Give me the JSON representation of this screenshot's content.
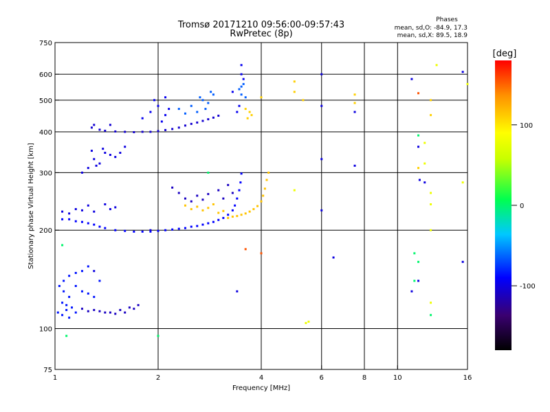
{
  "chart_data": {
    "type": "scatter",
    "title": "Tromsø 20171210 09:56:00-09:57:43",
    "subtitle": "RwPretec (8p)",
    "xlabel": "Frequency [MHz]",
    "ylabel": "Stationary phase Virtual Height [km]",
    "x_scale": "log",
    "y_scale": "log",
    "xlim": [
      1,
      16
    ],
    "ylim": [
      75,
      750
    ],
    "xticks": [
      1,
      2,
      4,
      6,
      8,
      10,
      16
    ],
    "yticks": [
      75,
      100,
      200,
      300,
      400,
      500,
      600,
      750
    ],
    "xgrid": [
      2,
      4,
      6,
      8,
      10
    ],
    "ygrid": [
      100,
      200,
      300,
      400,
      500,
      600
    ],
    "grid": true,
    "legend_block": {
      "title": "Phases",
      "line1": "mean, sd,O: -84.9, 17.3",
      "line2": "mean, sd,X:  89.5, 18.9"
    },
    "colorbar": {
      "label": "[deg]",
      "range": [
        -180,
        180
      ],
      "ticks": [
        100,
        0,
        -100
      ],
      "placement": "right"
    },
    "traces": [
      {
        "name": "",
        "phase": -90,
        "points": [
          [
            1.05,
            216
          ],
          [
            1.1,
            216
          ],
          [
            1.15,
            213
          ],
          [
            1.2,
            212
          ],
          [
            1.25,
            210
          ],
          [
            1.3,
            208
          ],
          [
            1.35,
            205
          ],
          [
            1.4,
            203
          ],
          [
            1.5,
            200
          ],
          [
            1.6,
            199
          ],
          [
            1.7,
            198
          ],
          [
            1.8,
            198
          ],
          [
            1.9,
            198
          ],
          [
            2.0,
            199
          ],
          [
            2.1,
            200
          ],
          [
            2.2,
            201
          ],
          [
            2.3,
            202
          ],
          [
            2.4,
            203
          ],
          [
            2.5,
            205
          ],
          [
            2.6,
            206
          ],
          [
            2.7,
            208
          ],
          [
            2.8,
            210
          ],
          [
            2.9,
            212
          ],
          [
            3.0,
            215
          ],
          [
            3.1,
            218
          ],
          [
            3.2,
            223
          ],
          [
            3.3,
            230
          ],
          [
            3.35,
            238
          ],
          [
            3.4,
            250
          ],
          [
            3.45,
            265
          ],
          [
            3.48,
            280
          ],
          [
            3.5,
            298
          ]
        ]
      },
      {
        "name": "",
        "phase": 115,
        "points": [
          [
            3.2,
            218
          ],
          [
            3.3,
            220
          ],
          [
            3.4,
            221
          ],
          [
            3.5,
            223
          ],
          [
            3.6,
            225
          ],
          [
            3.7,
            228
          ],
          [
            3.8,
            232
          ],
          [
            3.9,
            237
          ],
          [
            4.0,
            245
          ],
          [
            4.05,
            255
          ],
          [
            4.1,
            268
          ],
          [
            4.15,
            285
          ],
          [
            4.2,
            300
          ],
          [
            2.4,
            238
          ],
          [
            2.5,
            232
          ],
          [
            2.6,
            236
          ],
          [
            2.7,
            230
          ],
          [
            2.8,
            234
          ],
          [
            2.9,
            240
          ],
          [
            3.0,
            226
          ],
          [
            3.1,
            229
          ]
        ]
      },
      {
        "name": "",
        "phase": -105,
        "points": [
          [
            1.35,
            406
          ],
          [
            1.4,
            403
          ],
          [
            1.5,
            401
          ],
          [
            1.6,
            400
          ],
          [
            1.7,
            399
          ],
          [
            1.8,
            400
          ],
          [
            1.9,
            400
          ],
          [
            2.0,
            402
          ],
          [
            2.1,
            405
          ],
          [
            2.2,
            408
          ],
          [
            2.3,
            412
          ],
          [
            2.4,
            418
          ],
          [
            2.5,
            423
          ],
          [
            2.6,
            427
          ],
          [
            2.7,
            432
          ],
          [
            2.8,
            437
          ],
          [
            2.9,
            442
          ],
          [
            3.0,
            448
          ],
          [
            1.3,
            420
          ],
          [
            1.28,
            412
          ],
          [
            1.45,
            420
          ]
        ]
      },
      {
        "name": "",
        "phase": -65,
        "points": [
          [
            2.3,
            470
          ],
          [
            2.4,
            455
          ],
          [
            2.5,
            480
          ],
          [
            2.6,
            460
          ],
          [
            2.7,
            500
          ],
          [
            2.8,
            490
          ],
          [
            2.9,
            520
          ],
          [
            2.65,
            510
          ],
          [
            2.75,
            470
          ],
          [
            2.85,
            530
          ],
          [
            3.5,
            520
          ],
          [
            3.5,
            550
          ],
          [
            3.55,
            560
          ],
          [
            3.45,
            540
          ],
          [
            3.6,
            510
          ]
        ]
      },
      {
        "name": "",
        "phase": -95,
        "points": [
          [
            1.8,
            440
          ],
          [
            1.9,
            460
          ],
          [
            2.0,
            480
          ],
          [
            2.05,
            430
          ],
          [
            2.1,
            450
          ],
          [
            2.15,
            470
          ],
          [
            1.95,
            500
          ],
          [
            2.1,
            510
          ],
          [
            3.4,
            460
          ],
          [
            3.45,
            480
          ],
          [
            3.5,
            600
          ],
          [
            3.55,
            580
          ],
          [
            3.5,
            640
          ],
          [
            3.3,
            530
          ]
        ]
      },
      {
        "name": "",
        "phase": -100,
        "points": [
          [
            1.2,
            300
          ],
          [
            1.25,
            310
          ],
          [
            1.3,
            330
          ],
          [
            1.35,
            320
          ],
          [
            1.4,
            345
          ],
          [
            1.45,
            340
          ],
          [
            1.28,
            350
          ],
          [
            1.32,
            315
          ],
          [
            1.38,
            355
          ],
          [
            1.5,
            335
          ],
          [
            1.55,
            345
          ],
          [
            1.6,
            360
          ]
        ]
      },
      {
        "name": "",
        "phase": -85,
        "points": [
          [
            1.02,
            112
          ],
          [
            1.05,
            110
          ],
          [
            1.08,
            114
          ],
          [
            1.1,
            108
          ],
          [
            1.12,
            116
          ],
          [
            1.15,
            112
          ],
          [
            1.05,
            120
          ],
          [
            1.08,
            118
          ],
          [
            1.1,
            125
          ],
          [
            1.03,
            135
          ],
          [
            1.06,
            140
          ],
          [
            1.1,
            145
          ],
          [
            1.15,
            135
          ],
          [
            1.2,
            130
          ],
          [
            1.25,
            128
          ],
          [
            1.3,
            125
          ],
          [
            1.35,
            140
          ],
          [
            1.2,
            150
          ],
          [
            1.25,
            155
          ],
          [
            1.15,
            148
          ],
          [
            1.06,
            130
          ]
        ]
      },
      {
        "name": "",
        "phase": -110,
        "points": [
          [
            1.2,
            115
          ],
          [
            1.25,
            113
          ],
          [
            1.3,
            114
          ],
          [
            1.35,
            113
          ],
          [
            1.4,
            112
          ],
          [
            1.45,
            112
          ],
          [
            1.5,
            111
          ],
          [
            1.55,
            114
          ],
          [
            1.6,
            112
          ],
          [
            1.65,
            116
          ],
          [
            1.7,
            115
          ],
          [
            1.75,
            118
          ]
        ]
      },
      {
        "name": "",
        "phase": -100,
        "points": [
          [
            1.05,
            228
          ],
          [
            1.1,
            225
          ],
          [
            1.15,
            232
          ],
          [
            1.2,
            230
          ],
          [
            1.25,
            238
          ],
          [
            1.3,
            228
          ],
          [
            1.4,
            240
          ],
          [
            1.45,
            232
          ],
          [
            1.5,
            235
          ]
        ]
      },
      {
        "name": "",
        "phase": -110,
        "points": [
          [
            2.2,
            270
          ],
          [
            2.3,
            260
          ],
          [
            2.4,
            250
          ],
          [
            2.5,
            245
          ],
          [
            2.6,
            255
          ],
          [
            2.7,
            248
          ],
          [
            2.8,
            258
          ],
          [
            3.0,
            265
          ],
          [
            3.1,
            250
          ],
          [
            3.2,
            275
          ],
          [
            3.3,
            260
          ]
        ]
      },
      {
        "name": "",
        "phase": 110,
        "points": [
          [
            3.6,
            470
          ],
          [
            3.7,
            460
          ],
          [
            3.75,
            450
          ],
          [
            3.65,
            440
          ],
          [
            4.0,
            510
          ],
          [
            5.0,
            570
          ],
          [
            5.0,
            530
          ],
          [
            7.5,
            520
          ],
          [
            7.5,
            490
          ],
          [
            12.5,
            500
          ],
          [
            12.5,
            450
          ],
          [
            11.5,
            310
          ],
          [
            5.3,
            500
          ]
        ]
      },
      {
        "name": "",
        "phase": -100,
        "points": [
          [
            6.0,
            600
          ],
          [
            6.0,
            480
          ],
          [
            6.0,
            330
          ],
          [
            6.0,
            230
          ],
          [
            7.5,
            460
          ],
          [
            11.0,
            580
          ],
          [
            11.5,
            360
          ],
          [
            11.6,
            285
          ],
          [
            12.0,
            280
          ],
          [
            15.5,
            610
          ],
          [
            11.0,
            130
          ],
          [
            11.5,
            140
          ],
          [
            15.5,
            160
          ],
          [
            3.4,
            130
          ],
          [
            1.9,
            200
          ],
          [
            1.3,
            150
          ],
          [
            6.5,
            165
          ],
          [
            7.5,
            315
          ]
        ]
      },
      {
        "name": "",
        "phase": 80,
        "points": [
          [
            12.5,
            260
          ],
          [
            12.5,
            240
          ],
          [
            12.5,
            200
          ],
          [
            12.5,
            120
          ],
          [
            5.5,
            105
          ],
          [
            5.4,
            104
          ],
          [
            16.0,
            560
          ],
          [
            13.0,
            640
          ],
          [
            5.0,
            265
          ],
          [
            12.0,
            370
          ],
          [
            12.0,
            320
          ],
          [
            15.5,
            280
          ]
        ]
      },
      {
        "name": "",
        "phase": 0,
        "points": [
          [
            11.2,
            170
          ],
          [
            11.5,
            160
          ],
          [
            11.2,
            140
          ],
          [
            11.5,
            390
          ],
          [
            12.5,
            110
          ],
          [
            2.8,
            300
          ],
          [
            1.05,
            180
          ],
          [
            1.08,
            95
          ],
          [
            2.0,
            95
          ]
        ]
      },
      {
        "name": "",
        "phase": 155,
        "points": [
          [
            3.6,
            175
          ],
          [
            4.0,
            170
          ],
          [
            11.5,
            525
          ]
        ]
      }
    ]
  }
}
